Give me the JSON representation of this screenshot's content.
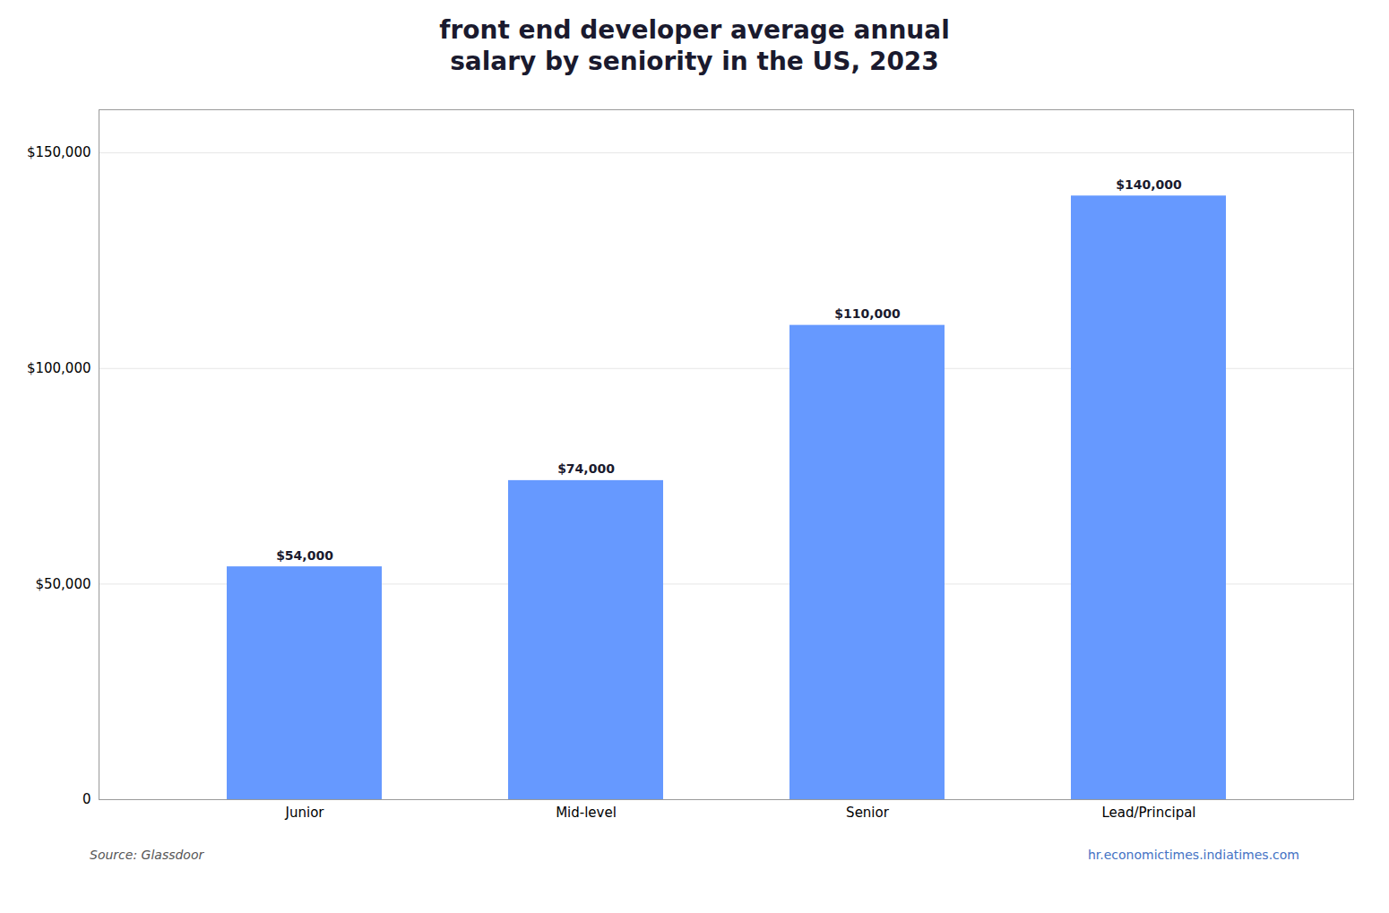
{
  "chart_data": {
    "type": "bar",
    "title": "front end developer average annual\nsalary by seniority in the US, 2023",
    "categories": [
      "Junior",
      "Mid-level",
      "Senior",
      "Lead/Principal"
    ],
    "values": [
      54000,
      74000,
      110000,
      140000
    ],
    "value_labels": [
      "$54,000",
      "$74,000",
      "$110,000",
      "$140,000"
    ],
    "data_labels": true,
    "color": "#6699FF",
    "ylim": [
      0,
      160000
    ],
    "yticks": [
      0,
      {
        "value": 50000,
        "label": "$50,000"
      },
      {
        "value": 100000,
        "label": "$100,000"
      },
      {
        "value": 150000,
        "label": "$150,000"
      }
    ],
    "grid": true,
    "annotations": [
      "Source: Glassdoor",
      "hr.economictimes.indiatimes.com"
    ]
  }
}
